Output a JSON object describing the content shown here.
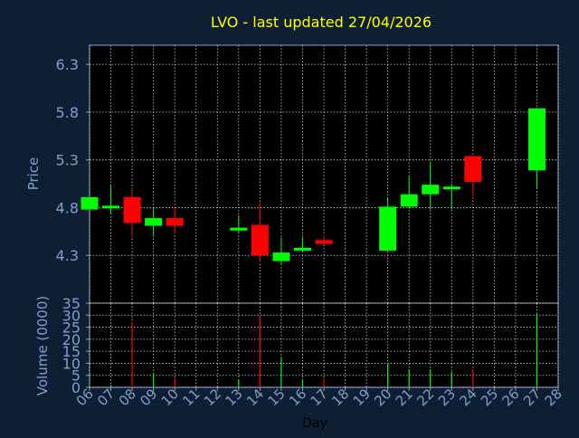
{
  "chart_data": [
    {
      "type": "candlestick",
      "title": "LVO - last updated 27/04/2026",
      "ylabel": "Price",
      "ylim": [
        3.8,
        6.5
      ],
      "yticks": [
        "6.3",
        "5.8",
        "5.3",
        "4.8",
        "4.3"
      ],
      "ytick_values": [
        6.3,
        5.8,
        5.3,
        4.8,
        4.3
      ],
      "grid": true,
      "colors": {
        "up": "#00ff00",
        "down": "#ff0000",
        "title": "#ffff00",
        "axis_text": "#7f9fcf",
        "grid": "#ffffff"
      },
      "candles": [
        {
          "day": "06",
          "open": 4.78,
          "close": 4.91,
          "high": 4.91,
          "low": 4.78
        },
        {
          "day": "07",
          "open": 4.8,
          "close": 4.82,
          "high": 5.03,
          "low": 4.73
        },
        {
          "day": "08",
          "open": 4.91,
          "close": 4.64,
          "high": 5.0,
          "low": 4.49
        },
        {
          "day": "09",
          "open": 4.61,
          "close": 4.69,
          "high": 4.81,
          "low": 4.51
        },
        {
          "day": "10",
          "open": 4.69,
          "close": 4.61,
          "high": 4.8,
          "low": 4.53
        },
        {
          "day": "13",
          "open": 4.56,
          "close": 4.59,
          "high": 4.72,
          "low": 4.53
        },
        {
          "day": "14",
          "open": 4.62,
          "close": 4.3,
          "high": 4.85,
          "low": 4.23
        },
        {
          "day": "15",
          "open": 4.24,
          "close": 4.33,
          "high": 4.49,
          "low": 4.2
        },
        {
          "day": "16",
          "open": 4.35,
          "close": 4.38,
          "high": 4.49,
          "low": 4.33
        },
        {
          "day": "17",
          "open": 4.46,
          "close": 4.42,
          "high": 4.51,
          "low": 4.41
        },
        {
          "day": "20",
          "open": 4.35,
          "close": 4.81,
          "high": 4.91,
          "low": 4.33
        },
        {
          "day": "21",
          "open": 4.81,
          "close": 4.94,
          "high": 5.13,
          "low": 4.79
        },
        {
          "day": "22",
          "open": 4.94,
          "close": 5.04,
          "high": 5.28,
          "low": 4.78
        },
        {
          "day": "23",
          "open": 5.0,
          "close": 5.02,
          "high": 5.05,
          "low": 4.78
        },
        {
          "day": "24",
          "open": 5.34,
          "close": 5.07,
          "high": 5.34,
          "low": 4.92
        },
        {
          "day": "27",
          "open": 5.19,
          "close": 5.84,
          "high": 5.84,
          "low": 5.01
        }
      ]
    },
    {
      "type": "bar",
      "ylabel": "Volume (0000)",
      "xlabel": "Day",
      "ylim": [
        0,
        35
      ],
      "yticks": [
        "35",
        "30",
        "25",
        "20",
        "15",
        "10",
        "5",
        "0"
      ],
      "ytick_values": [
        35,
        30,
        25,
        20,
        15,
        10,
        5,
        0
      ],
      "grid": true,
      "categories": [
        "06",
        "07",
        "08",
        "09",
        "10",
        "11",
        "12",
        "13",
        "14",
        "15",
        "16",
        "17",
        "18",
        "19",
        "20",
        "21",
        "22",
        "23",
        "24",
        "25",
        "26",
        "27",
        "28"
      ],
      "bars": [
        {
          "day": "06",
          "value": 1,
          "up": true
        },
        {
          "day": "07",
          "value": 1,
          "up": true
        },
        {
          "day": "08",
          "value": 27,
          "up": false
        },
        {
          "day": "09",
          "value": 6,
          "up": true
        },
        {
          "day": "10",
          "value": 4,
          "up": false
        },
        {
          "day": "13",
          "value": 3,
          "up": true
        },
        {
          "day": "14",
          "value": 30,
          "up": false
        },
        {
          "day": "15",
          "value": 12.5,
          "up": true
        },
        {
          "day": "16",
          "value": 3,
          "up": true
        },
        {
          "day": "17",
          "value": 3.5,
          "up": false
        },
        {
          "day": "20",
          "value": 10,
          "up": true
        },
        {
          "day": "21",
          "value": 7.5,
          "up": true
        },
        {
          "day": "22",
          "value": 7.5,
          "up": true
        },
        {
          "day": "23",
          "value": 6.5,
          "up": true
        },
        {
          "day": "24",
          "value": 7,
          "up": false
        },
        {
          "day": "27",
          "value": 30.5,
          "up": true
        }
      ]
    }
  ]
}
